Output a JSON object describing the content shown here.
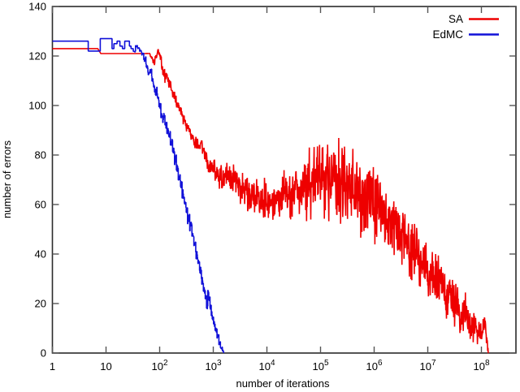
{
  "figure": {
    "background": "#ffffff",
    "axis_color": "#2b2b2b",
    "tick_color": "#555555",
    "text_color": "#000000"
  },
  "chart_data": {
    "type": "line",
    "title": "",
    "xlabel": "number of iterations",
    "ylabel": "number of errors",
    "x_scale": "log",
    "xlim": [
      1,
      440000000
    ],
    "ylim": [
      0,
      140
    ],
    "grid": false,
    "x_tick_values": [
      1,
      10,
      100,
      1000,
      10000,
      100000,
      1000000,
      10000000,
      100000000
    ],
    "x_tick_labels": [
      "1",
      "10",
      "10^2",
      "10^3",
      "10^4",
      "10^5",
      "10^6",
      "10^7",
      "10^8"
    ],
    "y_tick_values": [
      0,
      20,
      40,
      60,
      80,
      100,
      120,
      140
    ],
    "legend": {
      "position": "top-right",
      "box": false
    },
    "series": [
      {
        "name": "SA",
        "color": "#ee0000",
        "interp": "linear",
        "seed": 77,
        "render_samples": 1450,
        "points": [
          [
            1,
            123,
            0
          ],
          [
            7,
            123,
            0
          ],
          [
            8,
            121,
            0
          ],
          [
            55,
            121,
            0
          ],
          [
            65,
            121,
            0.5
          ],
          [
            70,
            119,
            1.5
          ],
          [
            78,
            117,
            2
          ],
          [
            85,
            120,
            2
          ],
          [
            95,
            122,
            1.5
          ],
          [
            105,
            119,
            2
          ],
          [
            115,
            114,
            2.5
          ],
          [
            125,
            112,
            3
          ],
          [
            135,
            113,
            2.5
          ],
          [
            145,
            110,
            3
          ],
          [
            160,
            108,
            3
          ],
          [
            180,
            105,
            3
          ],
          [
            200,
            102,
            3
          ],
          [
            225,
            99,
            3
          ],
          [
            250,
            97,
            3
          ],
          [
            280,
            94,
            3
          ],
          [
            320,
            91,
            3
          ],
          [
            360,
            89,
            3
          ],
          [
            400,
            87,
            3
          ],
          [
            450,
            85,
            3
          ],
          [
            500,
            84,
            3.5
          ],
          [
            560,
            84,
            3.5
          ],
          [
            630,
            83,
            3.5
          ],
          [
            700,
            81,
            4
          ],
          [
            800,
            77,
            4
          ],
          [
            900,
            74,
            4.5
          ],
          [
            1000,
            75,
            5
          ],
          [
            1200,
            72,
            6
          ],
          [
            1500,
            71,
            6.5
          ],
          [
            2000,
            72,
            7
          ],
          [
            2500,
            70,
            7.5
          ],
          [
            3000,
            68,
            8
          ],
          [
            4000,
            66,
            8.5
          ],
          [
            5000,
            64,
            9
          ],
          [
            6500,
            63,
            9
          ],
          [
            8000,
            62,
            9
          ],
          [
            10000,
            62,
            9
          ],
          [
            13000,
            62,
            9.5
          ],
          [
            16000,
            63,
            10
          ],
          [
            20000,
            63,
            11
          ],
          [
            26000,
            64,
            12
          ],
          [
            33000,
            65,
            13
          ],
          [
            42000,
            66,
            15
          ],
          [
            55000,
            68,
            17
          ],
          [
            70000,
            69,
            18
          ],
          [
            90000,
            70,
            20
          ],
          [
            110000,
            70,
            20
          ],
          [
            140000,
            70,
            20
          ],
          [
            180000,
            69,
            19
          ],
          [
            230000,
            68,
            19
          ],
          [
            300000,
            67,
            19
          ],
          [
            400000,
            66,
            18
          ],
          [
            500000,
            64,
            18
          ],
          [
            650000,
            62,
            18
          ],
          [
            800000,
            61,
            18
          ],
          [
            1000000,
            59,
            17
          ],
          [
            1300000,
            56,
            17
          ],
          [
            1600000,
            54,
            16
          ],
          [
            2000000,
            52,
            16
          ],
          [
            2600000,
            49,
            15
          ],
          [
            3300000,
            47,
            15
          ],
          [
            4200000,
            44,
            15
          ],
          [
            5500000,
            41,
            14
          ],
          [
            7000000,
            38,
            14
          ],
          [
            9000000,
            35,
            14
          ],
          [
            11000000,
            32,
            13
          ],
          [
            14000000,
            30,
            13
          ],
          [
            18000000,
            27,
            12
          ],
          [
            23000000,
            24,
            12
          ],
          [
            30000000,
            21,
            11
          ],
          [
            38000000,
            18,
            10
          ],
          [
            48000000,
            16,
            10
          ],
          [
            60000000,
            13,
            9
          ],
          [
            75000000,
            11,
            8
          ],
          [
            90000000,
            9,
            7
          ],
          [
            105000000,
            11,
            6
          ],
          [
            115000000,
            12,
            5
          ],
          [
            125000000,
            6,
            4
          ],
          [
            132000000,
            2,
            2
          ],
          [
            136000000,
            0,
            0
          ]
        ]
      },
      {
        "name": "EdMC",
        "color": "#1111d8",
        "interp": "step",
        "seed": 13,
        "render_samples": 540,
        "points": [
          [
            1,
            126,
            0
          ],
          [
            4,
            126,
            0
          ],
          [
            4.6,
            122,
            0
          ],
          [
            7,
            122,
            0
          ],
          [
            7.8,
            127,
            0
          ],
          [
            12,
            127,
            0
          ],
          [
            12.8,
            123,
            0
          ],
          [
            14,
            125,
            0
          ],
          [
            16,
            126,
            0
          ],
          [
            18,
            124,
            0
          ],
          [
            20,
            123,
            0
          ],
          [
            22,
            126,
            0
          ],
          [
            25,
            126,
            0
          ],
          [
            27,
            124,
            0
          ],
          [
            29,
            123,
            0
          ],
          [
            32,
            122,
            0.5
          ],
          [
            35,
            124,
            0.5
          ],
          [
            38,
            123,
            0.5
          ],
          [
            42,
            122,
            1
          ],
          [
            46,
            121,
            1
          ],
          [
            50,
            119,
            1.5
          ],
          [
            55,
            116,
            1.5
          ],
          [
            60,
            113,
            2
          ],
          [
            65,
            114,
            2
          ],
          [
            70,
            111,
            2
          ],
          [
            75,
            108,
            2
          ],
          [
            80,
            105,
            2
          ],
          [
            85,
            106,
            2
          ],
          [
            90,
            103,
            2
          ],
          [
            97,
            100,
            2
          ],
          [
            105,
            96,
            2
          ],
          [
            112,
            94,
            2
          ],
          [
            118,
            96,
            2
          ],
          [
            125,
            92,
            2
          ],
          [
            135,
            90,
            2
          ],
          [
            145,
            88,
            2
          ],
          [
            158,
            85,
            2
          ],
          [
            172,
            81,
            2.5
          ],
          [
            188,
            78,
            2.5
          ],
          [
            205,
            74,
            2.5
          ],
          [
            222,
            71,
            2.5
          ],
          [
            240,
            68,
            2.5
          ],
          [
            260,
            64,
            2.5
          ],
          [
            282,
            61,
            2.5
          ],
          [
            305,
            58,
            2.5
          ],
          [
            330,
            54,
            2.5
          ],
          [
            360,
            51,
            2.5
          ],
          [
            395,
            47,
            2.5
          ],
          [
            430,
            44,
            2.5
          ],
          [
            470,
            40,
            2.5
          ],
          [
            510,
            37,
            2.5
          ],
          [
            550,
            33,
            2.5
          ],
          [
            600,
            29,
            2.5
          ],
          [
            650,
            25,
            2.5
          ],
          [
            700,
            22,
            2
          ],
          [
            740,
            19,
            2
          ],
          [
            780,
            25,
            1.5
          ],
          [
            820,
            22,
            1.5
          ],
          [
            860,
            19,
            1.5
          ],
          [
            905,
            16,
            1.5
          ],
          [
            950,
            14,
            1.5
          ],
          [
            1000,
            12,
            1.5
          ],
          [
            1080,
            9,
            1.5
          ],
          [
            1170,
            7,
            1
          ],
          [
            1260,
            4,
            1
          ],
          [
            1360,
            2,
            0.5
          ],
          [
            1460,
            1,
            0.5
          ],
          [
            1560,
            0,
            0
          ]
        ]
      }
    ]
  }
}
